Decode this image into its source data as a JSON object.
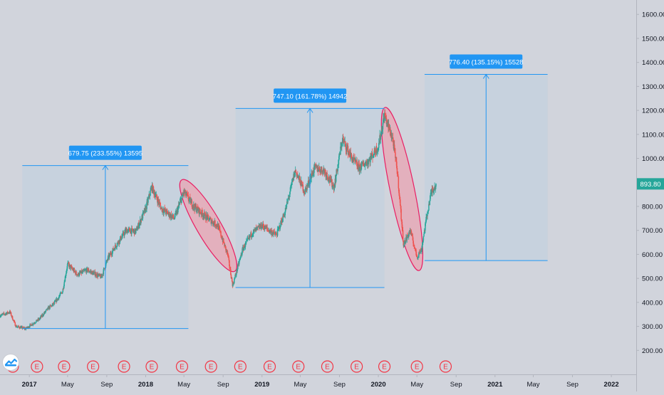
{
  "chart_data": {
    "type": "candlestick",
    "title": "",
    "xlabel": "",
    "ylabel": "",
    "ylim": [
      100,
      1660
    ],
    "xlim": [
      "2016-10-01",
      "2022-03-20"
    ],
    "y_ticks": [
      "200.00",
      "300.00",
      "400.00",
      "500.00",
      "600.00",
      "700.00",
      "800.00",
      "900.00",
      "1000.00",
      "1100.00",
      "1200.00",
      "1300.00",
      "1400.00",
      "1500.00",
      "1600.00"
    ],
    "x_ticks": [
      {
        "label": "2017",
        "date": "2017-01-01",
        "bold": true
      },
      {
        "label": "May",
        "date": "2017-05-01",
        "bold": false
      },
      {
        "label": "Sep",
        "date": "2017-09-01",
        "bold": false
      },
      {
        "label": "2018",
        "date": "2018-01-01",
        "bold": true
      },
      {
        "label": "May",
        "date": "2018-05-01",
        "bold": false
      },
      {
        "label": "Sep",
        "date": "2018-09-01",
        "bold": false
      },
      {
        "label": "2019",
        "date": "2019-01-01",
        "bold": true
      },
      {
        "label": "May",
        "date": "2019-05-01",
        "bold": false
      },
      {
        "label": "Sep",
        "date": "2019-09-01",
        "bold": false
      },
      {
        "label": "2020",
        "date": "2020-01-01",
        "bold": true
      },
      {
        "label": "May",
        "date": "2020-05-01",
        "bold": false
      },
      {
        "label": "Sep",
        "date": "2020-09-01",
        "bold": false
      },
      {
        "label": "2021",
        "date": "2021-01-01",
        "bold": true
      },
      {
        "label": "May",
        "date": "2021-05-01",
        "bold": false
      },
      {
        "label": "Sep",
        "date": "2021-09-01",
        "bold": false
      },
      {
        "label": "2022",
        "date": "2022-01-01",
        "bold": true
      }
    ],
    "price_path": [
      [
        "2016-10-01",
        345
      ],
      [
        "2016-11-01",
        360
      ],
      [
        "2016-11-20",
        300
      ],
      [
        "2016-12-20",
        290
      ],
      [
        "2017-02-01",
        330
      ],
      [
        "2017-03-01",
        375
      ],
      [
        "2017-03-20",
        395
      ],
      [
        "2017-04-15",
        445
      ],
      [
        "2017-05-01",
        560
      ],
      [
        "2017-06-01",
        515
      ],
      [
        "2017-07-01",
        535
      ],
      [
        "2017-08-15",
        505
      ],
      [
        "2017-09-05",
        585
      ],
      [
        "2017-10-01",
        640
      ],
      [
        "2017-11-01",
        700
      ],
      [
        "2017-12-01",
        695
      ],
      [
        "2018-01-01",
        790
      ],
      [
        "2018-01-20",
        880
      ],
      [
        "2018-02-20",
        790
      ],
      [
        "2018-04-01",
        750
      ],
      [
        "2018-05-01",
        860
      ],
      [
        "2018-06-01",
        800
      ],
      [
        "2018-07-15",
        750
      ],
      [
        "2018-08-15",
        720
      ],
      [
        "2018-09-15",
        600
      ],
      [
        "2018-10-01",
        470
      ],
      [
        "2018-11-01",
        620
      ],
      [
        "2018-12-01",
        690
      ],
      [
        "2019-01-01",
        720
      ],
      [
        "2019-02-15",
        680
      ],
      [
        "2019-03-15",
        780
      ],
      [
        "2019-04-15",
        950
      ],
      [
        "2019-05-15",
        860
      ],
      [
        "2019-06-15",
        960
      ],
      [
        "2019-07-15",
        950
      ],
      [
        "2019-08-15",
        880
      ],
      [
        "2019-09-10",
        1080
      ],
      [
        "2019-10-10",
        1000
      ],
      [
        "2019-11-01",
        960
      ],
      [
        "2019-12-01",
        990
      ],
      [
        "2020-01-01",
        1050
      ],
      [
        "2020-01-20",
        1180
      ],
      [
        "2020-02-15",
        1080
      ],
      [
        "2020-03-01",
        940
      ],
      [
        "2020-03-20",
        640
      ],
      [
        "2020-04-10",
        700
      ],
      [
        "2020-05-01",
        590
      ],
      [
        "2020-05-15",
        620
      ],
      [
        "2020-06-01",
        760
      ],
      [
        "2020-06-15",
        860
      ],
      [
        "2020-07-01",
        893.8
      ]
    ],
    "last_price": "893.80",
    "earnings_markers": [
      {
        "date": "2016-11-10",
        "label": "E"
      },
      {
        "date": "2017-01-25",
        "label": "E"
      },
      {
        "date": "2017-04-20",
        "label": "E"
      },
      {
        "date": "2017-07-20",
        "label": "E"
      },
      {
        "date": "2017-10-25",
        "label": "E"
      },
      {
        "date": "2018-01-20",
        "label": "E"
      },
      {
        "date": "2018-04-25",
        "label": "E"
      },
      {
        "date": "2018-07-25",
        "label": "E"
      },
      {
        "date": "2018-10-25",
        "label": "E"
      },
      {
        "date": "2019-01-25",
        "label": "E"
      },
      {
        "date": "2019-04-25",
        "label": "E"
      },
      {
        "date": "2019-07-25",
        "label": "E"
      },
      {
        "date": "2019-10-25",
        "label": "E"
      },
      {
        "date": "2020-01-20",
        "label": "E"
      },
      {
        "date": "2020-05-01",
        "label": "E"
      },
      {
        "date": "2020-07-30",
        "label": "E"
      }
    ],
    "annotations": [
      {
        "label": "679.75 (233.55%) 13595",
        "start_date": "2016-12-10",
        "end_date": "2018-05-15",
        "low": 291,
        "high": 970
      },
      {
        "label": "747.10 (161.78%) 14942",
        "start_date": "2018-10-10",
        "end_date": "2020-01-20",
        "low": 462,
        "high": 1208
      },
      {
        "label": "776.40 (135.15%) 15528",
        "start_date": "2020-05-25",
        "end_date": "2021-06-15",
        "low": 574,
        "high": 1350
      }
    ],
    "decline_zones": [
      {
        "from_date": "2018-05-01",
        "from_price": 895,
        "to_date": "2018-10-01",
        "to_price": 545
      },
      {
        "from_date": "2020-01-25",
        "from_price": 1195,
        "to_date": "2020-05-05",
        "to_price": 550
      }
    ],
    "colors": {
      "background": "#d1d4dc",
      "up": "#26a69a",
      "down": "#ef5350",
      "tool": "#2196f3",
      "box_fill": "#c5d1de",
      "ellipse_fill": "#e8a4b3",
      "ellipse_stroke": "#e91e63",
      "axis_text": "#131722",
      "last_price_bg": "#26a69a"
    },
    "logo_icon": "tradingview-logo-icon"
  }
}
